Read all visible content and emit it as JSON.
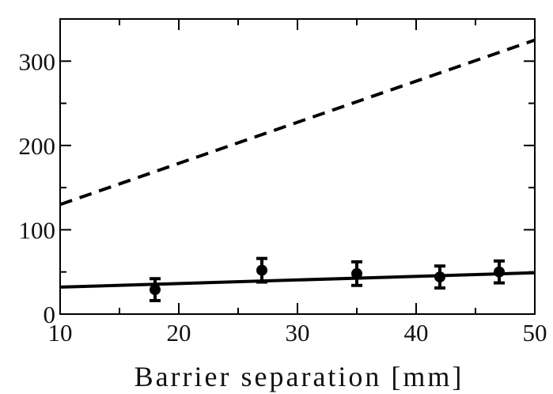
{
  "chart_data": {
    "type": "line",
    "title": "",
    "xlabel": "Barrier separation [mm]",
    "ylabel": "",
    "xlim": [
      10,
      50
    ],
    "ylim": [
      0,
      350
    ],
    "xticks": [
      10,
      20,
      30,
      40,
      50
    ],
    "yticks": [
      0,
      100,
      200,
      300
    ],
    "xtick_labels": [
      "10",
      "20",
      "30",
      "40",
      "50"
    ],
    "ytick_labels": [
      "0",
      "100",
      "200",
      "300"
    ],
    "grid": false,
    "legend": "none",
    "series": [
      {
        "style": "dashed",
        "color": "#000000",
        "x": [
          10,
          50
        ],
        "y": [
          130,
          325
        ]
      },
      {
        "style": "solid",
        "color": "#000000",
        "x": [
          10,
          50
        ],
        "y": [
          32,
          49
        ]
      },
      {
        "style": "points-with-error-bars",
        "color": "#000000",
        "x": [
          18,
          27,
          35,
          42,
          47
        ],
        "y": [
          29,
          52,
          48,
          44,
          50
        ],
        "err_low": [
          13,
          14,
          14,
          13,
          13
        ],
        "err_high": [
          13,
          14,
          14,
          13,
          13
        ]
      }
    ]
  }
}
